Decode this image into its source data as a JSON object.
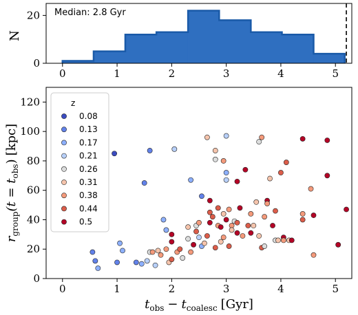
{
  "chart_data": [
    {
      "type": "histogram",
      "ylabel": "N",
      "annotation": "Median: 2.8 Gyr",
      "xlim": [
        -0.3,
        5.3
      ],
      "ylim": [
        0,
        25
      ],
      "xticks": [
        "0",
        "1",
        "2",
        "3",
        "4",
        "5"
      ],
      "yticks": [
        "0",
        "20"
      ],
      "bin_edges": [
        0.0,
        0.57,
        1.15,
        1.72,
        2.3,
        2.87,
        3.45,
        4.02,
        4.6,
        5.17
      ],
      "counts": [
        1,
        5,
        12,
        13,
        22,
        18,
        13,
        12,
        4
      ],
      "fill_color": "#2f6fc0",
      "edge_color": "#1a5aa8",
      "vertical_line_x": 5.2
    },
    {
      "type": "scatter",
      "xlabel_main": "t",
      "xlabel_sub1": "obs",
      "xlabel_minus": "−",
      "xlabel_sub2": "coalesc",
      "xlabel_unit": "[Gyr]",
      "ylabel_main": "r",
      "ylabel_sub": "group",
      "ylabel_arg_open": "(t = t",
      "ylabel_arg_sub": "obs",
      "ylabel_arg_close": ")",
      "ylabel_unit": "[kpc]",
      "xlim": [
        -0.3,
        5.3
      ],
      "ylim": [
        0,
        130
      ],
      "xticks": [
        "0",
        "1",
        "2",
        "3",
        "4",
        "5"
      ],
      "yticks": [
        "0",
        "20",
        "40",
        "60",
        "80",
        "100",
        "120"
      ],
      "legend": {
        "title": "z",
        "position": "upper-left",
        "entries": [
          {
            "label": "0.08",
            "color": "#3b4cc0"
          },
          {
            "label": "0.13",
            "color": "#6282ea"
          },
          {
            "label": "0.17",
            "color": "#8db0fe"
          },
          {
            "label": "0.21",
            "color": "#b8d0f9"
          },
          {
            "label": "0.26",
            "color": "#dcdddd"
          },
          {
            "label": "0.31",
            "color": "#f5c4ac"
          },
          {
            "label": "0.38",
            "color": "#f49a7b"
          },
          {
            "label": "0.44",
            "color": "#dc5d4a"
          },
          {
            "label": "0.5",
            "color": "#b40426"
          }
        ]
      },
      "points": [
        [
          0.55,
          18,
          1
        ],
        [
          0.6,
          12,
          1
        ],
        [
          0.65,
          7,
          2
        ],
        [
          0.95,
          85,
          0
        ],
        [
          1.0,
          11,
          1
        ],
        [
          1.05,
          24,
          2
        ],
        [
          1.1,
          19,
          2
        ],
        [
          1.35,
          11,
          1
        ],
        [
          1.45,
          10,
          2
        ],
        [
          1.5,
          65,
          1
        ],
        [
          1.55,
          12,
          3
        ],
        [
          1.6,
          87,
          1
        ],
        [
          1.6,
          18,
          4
        ],
        [
          1.65,
          18,
          6
        ],
        [
          1.7,
          9,
          3
        ],
        [
          1.75,
          19,
          5
        ],
        [
          1.8,
          16,
          6
        ],
        [
          1.85,
          40,
          2
        ],
        [
          1.9,
          33,
          2
        ],
        [
          1.9,
          20,
          6
        ],
        [
          1.95,
          11,
          5
        ],
        [
          2.0,
          13,
          7
        ],
        [
          2.0,
          25,
          8
        ],
        [
          2.0,
          30,
          8
        ],
        [
          2.05,
          88,
          3
        ],
        [
          2.1,
          18,
          6
        ],
        [
          2.15,
          20,
          7
        ],
        [
          2.2,
          14,
          4
        ],
        [
          2.3,
          27,
          4
        ],
        [
          2.3,
          35,
          5
        ],
        [
          2.35,
          18,
          6
        ],
        [
          2.35,
          67,
          2
        ],
        [
          2.4,
          23,
          8
        ],
        [
          2.45,
          32,
          7
        ],
        [
          2.45,
          36,
          4
        ],
        [
          2.5,
          28,
          3
        ],
        [
          2.5,
          38,
          6
        ],
        [
          2.55,
          22,
          2
        ],
        [
          2.55,
          56,
          1
        ],
        [
          2.6,
          24,
          5
        ],
        [
          2.65,
          96,
          5
        ],
        [
          2.65,
          29,
          7
        ],
        [
          2.7,
          38,
          8
        ],
        [
          2.7,
          45,
          7
        ],
        [
          2.7,
          53,
          8
        ],
        [
          2.75,
          42,
          7
        ],
        [
          2.8,
          21,
          7
        ],
        [
          2.8,
          87,
          5
        ],
        [
          2.8,
          81,
          4
        ],
        [
          2.85,
          36,
          6
        ],
        [
          2.85,
          48,
          7
        ],
        [
          2.9,
          35,
          8
        ],
        [
          2.9,
          25,
          5
        ],
        [
          2.95,
          28,
          6
        ],
        [
          2.95,
          80,
          6
        ],
        [
          2.95,
          44,
          5
        ],
        [
          3.0,
          40,
          8
        ],
        [
          3.0,
          97,
          3
        ],
        [
          3.0,
          72,
          2
        ],
        [
          3.0,
          67,
          3
        ],
        [
          3.05,
          22,
          7
        ],
        [
          3.05,
          47,
          6
        ],
        [
          3.1,
          36,
          6
        ],
        [
          3.1,
          33,
          5
        ],
        [
          3.15,
          39,
          4
        ],
        [
          3.2,
          66,
          8
        ],
        [
          3.2,
          38,
          7
        ],
        [
          3.2,
          31,
          8
        ],
        [
          3.25,
          48,
          8
        ],
        [
          3.3,
          29,
          6
        ],
        [
          3.35,
          74,
          8
        ],
        [
          3.4,
          36,
          7
        ],
        [
          3.45,
          31,
          8
        ],
        [
          3.45,
          44,
          6
        ],
        [
          3.5,
          36,
          5
        ],
        [
          3.55,
          52,
          5
        ],
        [
          3.6,
          93,
          4
        ],
        [
          3.6,
          29,
          5
        ],
        [
          3.65,
          96,
          6
        ],
        [
          3.65,
          21,
          7
        ],
        [
          3.7,
          22,
          4
        ],
        [
          3.7,
          42,
          6
        ],
        [
          3.75,
          53,
          8
        ],
        [
          3.75,
          51,
          6
        ],
        [
          3.8,
          68,
          5
        ],
        [
          3.85,
          36,
          8
        ],
        [
          3.9,
          46,
          7
        ],
        [
          3.9,
          26,
          4
        ],
        [
          3.95,
          26,
          5
        ],
        [
          4.0,
          72,
          7
        ],
        [
          4.05,
          28,
          8
        ],
        [
          4.05,
          26,
          6
        ],
        [
          4.1,
          79,
          7
        ],
        [
          4.15,
          26,
          5
        ],
        [
          4.2,
          26,
          8
        ],
        [
          4.4,
          95,
          8
        ],
        [
          4.4,
          44,
          6
        ],
        [
          4.4,
          40,
          7
        ],
        [
          4.55,
          61,
          6
        ],
        [
          4.6,
          43,
          8
        ],
        [
          4.6,
          16,
          6
        ],
        [
          4.85,
          94,
          8
        ],
        [
          4.85,
          70,
          8
        ],
        [
          5.05,
          23,
          8
        ],
        [
          5.2,
          47,
          8
        ]
      ]
    }
  ]
}
